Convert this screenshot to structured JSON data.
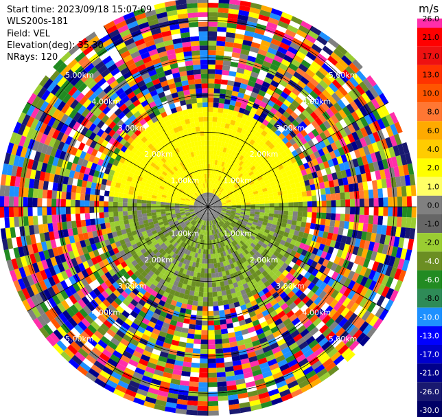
{
  "header": {
    "start_time": "Start time: 2023/09/18 15:07:09",
    "site": "WLS200s-181",
    "field": "Field: VEL",
    "elevation": "Elevation(deg): 35.30",
    "nrays": "NRays: 120"
  },
  "chart_data": {
    "type": "ppi",
    "units": "m/s",
    "nrays": 120,
    "range_rings": [
      {
        "label": "1.00km",
        "value": 1
      },
      {
        "label": "2.00km",
        "value": 2
      },
      {
        "label": "3.00km",
        "value": 3
      },
      {
        "label": "4.00km",
        "value": 4
      },
      {
        "label": "5.00km",
        "value": 5
      }
    ],
    "max_range_km": 5.6,
    "azimuth_lines_deg": [
      0,
      30,
      60,
      90,
      120,
      150,
      180,
      210,
      240,
      270,
      300,
      330
    ],
    "colorbar": {
      "ticks": [
        "26.0",
        "21.0",
        "17.0",
        "13.0",
        "10.0",
        "8.0",
        "6.0",
        "4.0",
        "2.0",
        "1.0",
        "0.0",
        "-1.0",
        "-2.0",
        "-4.0",
        "-6.0",
        "-8.0",
        "-10.0",
        "-13.0",
        "-17.0",
        "-21.0",
        "-26.0",
        "-30.0"
      ],
      "colors": [
        "#ff2eaa",
        "#ff0000",
        "#ee1111",
        "#ff3300",
        "#ff5500",
        "#ff7733",
        "#ffaa00",
        "#ffcc00",
        "#ffff00",
        "#ffff66",
        "#808080",
        "#666666",
        "#9acd32",
        "#6b8e23",
        "#228b22",
        "#2e8b57",
        "#1e90ff",
        "#0000ff",
        "#0000cc",
        "#00008b",
        "#191970",
        "#000066"
      ]
    },
    "valid_range_km": 2.7
  }
}
